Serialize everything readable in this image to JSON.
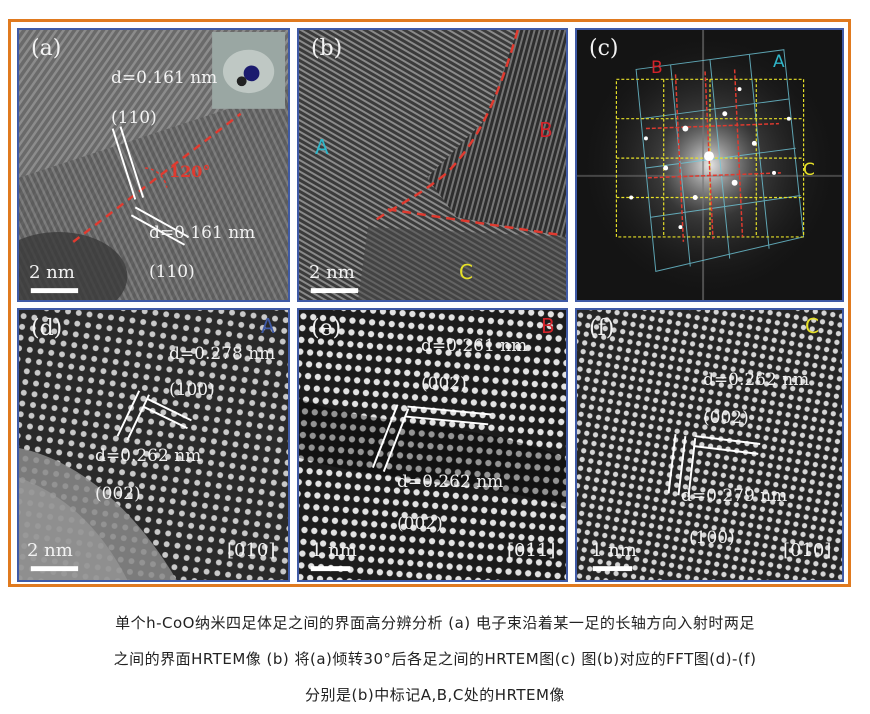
{
  "panels": {
    "a": {
      "label": "(a)",
      "d_top": "d=0.161 nm",
      "plane_top": "(110)",
      "angle": "120°",
      "d_bottom": "d=0.161 nm",
      "plane_bottom": "(110)",
      "scale": "2 nm"
    },
    "b": {
      "label": "(b)",
      "zone_a": "A",
      "zone_b": "B",
      "zone_c": "C",
      "scale": "2 nm"
    },
    "c": {
      "label": "(c)",
      "zone_a": "A",
      "zone_b": "B",
      "zone_c": "C"
    },
    "d": {
      "label": "(d)",
      "zone": "A",
      "d_top": "d=0.278 nm",
      "plane_top": "(100)",
      "d_bottom": "d=0.262 nm",
      "plane_bottom": "(002)",
      "scale": "2 nm",
      "axis": "[010]"
    },
    "e": {
      "label": "(e)",
      "zone": "B",
      "d_top": "d=0.261 nm",
      "plane_top": "(002)",
      "d_bottom": "d=0.262 nm",
      "plane_bottom": "(002)",
      "scale": "1 nm",
      "axis": "[011]"
    },
    "f": {
      "label": "(f)",
      "zone": "C",
      "d_top": "d=0.262 nm",
      "plane_top": "(002)",
      "d_bottom": "d=0.279 nm",
      "plane_bottom": "(100)",
      "scale": "1 nm",
      "axis": "[010]"
    }
  },
  "colors": {
    "frame": "#e07a1f",
    "panel_border": "#3f5aa6",
    "zone_a": "#2fb6c9",
    "zone_b": "#d2232a",
    "zone_c": "#e6e028",
    "boundary": "#e03a2f"
  },
  "caption": {
    "line1": "单个h-CoO纳米四足体足之间的界面高分辨分析 (a) 电子束沿着某一足的长轴方向入射时两足",
    "line2": "之间的界面HRTEM像 (b) 将(a)倾转30°后各足之间的HRTEM图(c) 图(b)对应的FFT图(d)-(f)",
    "line3": "分别是(b)中标记A,B,C处的HRTEM像"
  }
}
